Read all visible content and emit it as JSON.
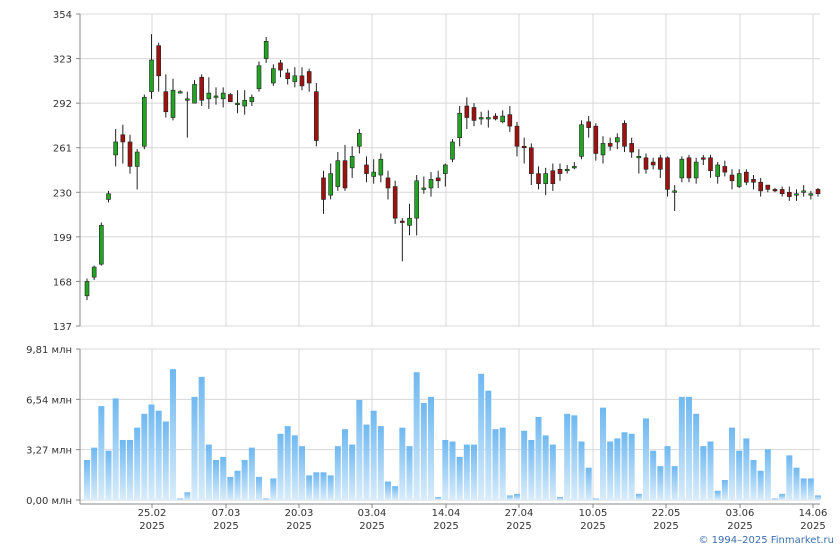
{
  "colors": {
    "up_candle": "#22a322",
    "down_candle": "#9e1111",
    "volume_bar_top": "#6fb8f0",
    "volume_bar_bottom": "#d8ecfb",
    "grid": "#d8d8d8",
    "axis": "#888888"
  },
  "copyright": "© 1994–2025 Finmarket.ru",
  "chart_data": [
    {
      "type": "candlestick",
      "name": "price",
      "ylim": [
        137,
        354
      ],
      "y_ticks": [
        "354",
        "323",
        "292",
        "261",
        "230",
        "199",
        "168",
        "137"
      ],
      "x_tick_labels": [
        {
          "date": "25.02",
          "year": "2025"
        },
        {
          "date": "07.03",
          "year": "2025"
        },
        {
          "date": "20.03",
          "year": "2025"
        },
        {
          "date": "03.04",
          "year": "2025"
        },
        {
          "date": "14.04",
          "year": "2025"
        },
        {
          "date": "27.04",
          "year": "2025"
        },
        {
          "date": "10.05",
          "year": "2025"
        },
        {
          "date": "22.05",
          "year": "2025"
        },
        {
          "date": "03.06",
          "year": "2025"
        },
        {
          "date": "14.06",
          "year": "2025"
        }
      ],
      "ohlc": [
        [
          158,
          168,
          155,
          170
        ],
        [
          171,
          178,
          169,
          179
        ],
        [
          180,
          207,
          179,
          209
        ],
        [
          225,
          229,
          223,
          231
        ],
        [
          256,
          265,
          248,
          274
        ],
        [
          270,
          265,
          250,
          277
        ],
        [
          265,
          248,
          243,
          270
        ],
        [
          248,
          258,
          232,
          260
        ],
        [
          262,
          296,
          260,
          298
        ],
        [
          300,
          322,
          295,
          340
        ],
        [
          332,
          311,
          300,
          334
        ],
        [
          300,
          286,
          282,
          312
        ],
        [
          282,
          301,
          280,
          309
        ],
        [
          299,
          300,
          299,
          301
        ],
        [
          295,
          295,
          268,
          300
        ],
        [
          292,
          305,
          292,
          308
        ],
        [
          310,
          294,
          290,
          312
        ],
        [
          295,
          299,
          288,
          310
        ],
        [
          297,
          297,
          291,
          303
        ],
        [
          295,
          299,
          289,
          303
        ],
        [
          298,
          293,
          293,
          299
        ],
        [
          291,
          292,
          285,
          301
        ],
        [
          290,
          294,
          284,
          301
        ],
        [
          293,
          296,
          290,
          298
        ],
        [
          302,
          318,
          300,
          321
        ],
        [
          323,
          335,
          320,
          338
        ],
        [
          306,
          316,
          304,
          319
        ],
        [
          320,
          315,
          310,
          322
        ],
        [
          313,
          309,
          305,
          316
        ],
        [
          307,
          311,
          303,
          317
        ],
        [
          311,
          304,
          301,
          317
        ],
        [
          314,
          306,
          300,
          316
        ],
        [
          300,
          266,
          262,
          306
        ],
        [
          240,
          225,
          215,
          245
        ],
        [
          228,
          243,
          225,
          250
        ],
        [
          234,
          252,
          231,
          258
        ],
        [
          252,
          233,
          231,
          263
        ],
        [
          247,
          255,
          240,
          262
        ],
        [
          262,
          271,
          257,
          274
        ],
        [
          249,
          243,
          237,
          255
        ],
        [
          241,
          244,
          236,
          253
        ],
        [
          242,
          253,
          237,
          257
        ],
        [
          240,
          233,
          225,
          245
        ],
        [
          234,
          212,
          208,
          238
        ],
        [
          210,
          209,
          182,
          212
        ],
        [
          207,
          212,
          200,
          222
        ],
        [
          212,
          238,
          200,
          242
        ],
        [
          233,
          233,
          229,
          241
        ],
        [
          233,
          239,
          227,
          244
        ],
        [
          240,
          238,
          233,
          245
        ],
        [
          243,
          249,
          234,
          250
        ],
        [
          253,
          265,
          251,
          267
        ],
        [
          268,
          285,
          262,
          290
        ],
        [
          290,
          282,
          274,
          296
        ],
        [
          289,
          280,
          276,
          292
        ],
        [
          281,
          282,
          277,
          286
        ],
        [
          282,
          282,
          275,
          287
        ],
        [
          283,
          281,
          280,
          285
        ],
        [
          279,
          283,
          278,
          287
        ],
        [
          284,
          276,
          272,
          290
        ],
        [
          276,
          262,
          255,
          279
        ],
        [
          262,
          261,
          250,
          268
        ],
        [
          261,
          243,
          235,
          264
        ],
        [
          243,
          236,
          232,
          248
        ],
        [
          236,
          243,
          228,
          247
        ],
        [
          245,
          236,
          231,
          250
        ],
        [
          246,
          243,
          238,
          250
        ],
        [
          245,
          246,
          243,
          249
        ],
        [
          248,
          248,
          246,
          251
        ],
        [
          255,
          277,
          253,
          280
        ],
        [
          279,
          275,
          268,
          283
        ],
        [
          276,
          257,
          252,
          278
        ],
        [
          256,
          264,
          250,
          269
        ],
        [
          264,
          262,
          259,
          268
        ],
        [
          265,
          268,
          260,
          271
        ],
        [
          278,
          262,
          258,
          280
        ],
        [
          264,
          258,
          254,
          268
        ],
        [
          255,
          255,
          243,
          260
        ],
        [
          254,
          246,
          243,
          257
        ],
        [
          251,
          249,
          246,
          254
        ],
        [
          254,
          246,
          240,
          256
        ],
        [
          254,
          232,
          227,
          255
        ],
        [
          231,
          231,
          217,
          235
        ],
        [
          240,
          253,
          237,
          255
        ],
        [
          254,
          240,
          237,
          256
        ],
        [
          240,
          251,
          236,
          254
        ],
        [
          254,
          253,
          249,
          256
        ],
        [
          254,
          245,
          240,
          256
        ],
        [
          241,
          249,
          236,
          251
        ],
        [
          248,
          244,
          241,
          252
        ],
        [
          242,
          238,
          232,
          246
        ],
        [
          234,
          243,
          233,
          246
        ],
        [
          244,
          237,
          235,
          246
        ],
        [
          239,
          237,
          232,
          242
        ],
        [
          237,
          231,
          227,
          240
        ],
        [
          235,
          232,
          230,
          235
        ],
        [
          232,
          231,
          230,
          233
        ],
        [
          232,
          229,
          227,
          234
        ],
        [
          230,
          227,
          224,
          234
        ],
        [
          228,
          229,
          224,
          232
        ],
        [
          231,
          231,
          227,
          235
        ],
        [
          229,
          229,
          225,
          231
        ],
        [
          232,
          229,
          227,
          233
        ]
      ]
    },
    {
      "type": "bar",
      "name": "volume",
      "unit": "млн",
      "ylim": [
        0,
        9.81
      ],
      "y_ticks": [
        "9,81 млн",
        "6,54 млн",
        "3,27 млн",
        "0,00 млн"
      ],
      "values": [
        2.6,
        3.4,
        6.1,
        3.2,
        6.6,
        3.9,
        3.9,
        4.7,
        5.6,
        6.2,
        5.8,
        5.1,
        8.5,
        0.1,
        0.5,
        6.7,
        8.0,
        3.6,
        2.6,
        2.8,
        1.5,
        1.9,
        2.6,
        3.4,
        1.5,
        0.1,
        1.4,
        4.3,
        4.8,
        4.2,
        3.5,
        1.6,
        1.8,
        1.8,
        1.6,
        3.5,
        4.6,
        3.6,
        6.5,
        4.9,
        5.8,
        4.8,
        1.2,
        0.9,
        4.7,
        3.5,
        8.3,
        6.3,
        6.7,
        0.2,
        3.9,
        3.8,
        2.8,
        3.6,
        3.6,
        8.2,
        7.1,
        4.6,
        4.7,
        0.3,
        0.4,
        4.5,
        3.9,
        5.4,
        4.2,
        3.6,
        0.2,
        5.6,
        5.5,
        3.8,
        2.1,
        0.1,
        6.0,
        3.8,
        4.0,
        4.4,
        4.3,
        0.4,
        5.3,
        3.2,
        2.2,
        3.5,
        2.2,
        6.7,
        6.7,
        5.6,
        3.5,
        3.8,
        0.6,
        1.3,
        4.7,
        3.2,
        4.0,
        2.6,
        1.9,
        3.3,
        0.1,
        0.4,
        2.9,
        2.1,
        1.4,
        1.4,
        0.3
      ]
    }
  ]
}
